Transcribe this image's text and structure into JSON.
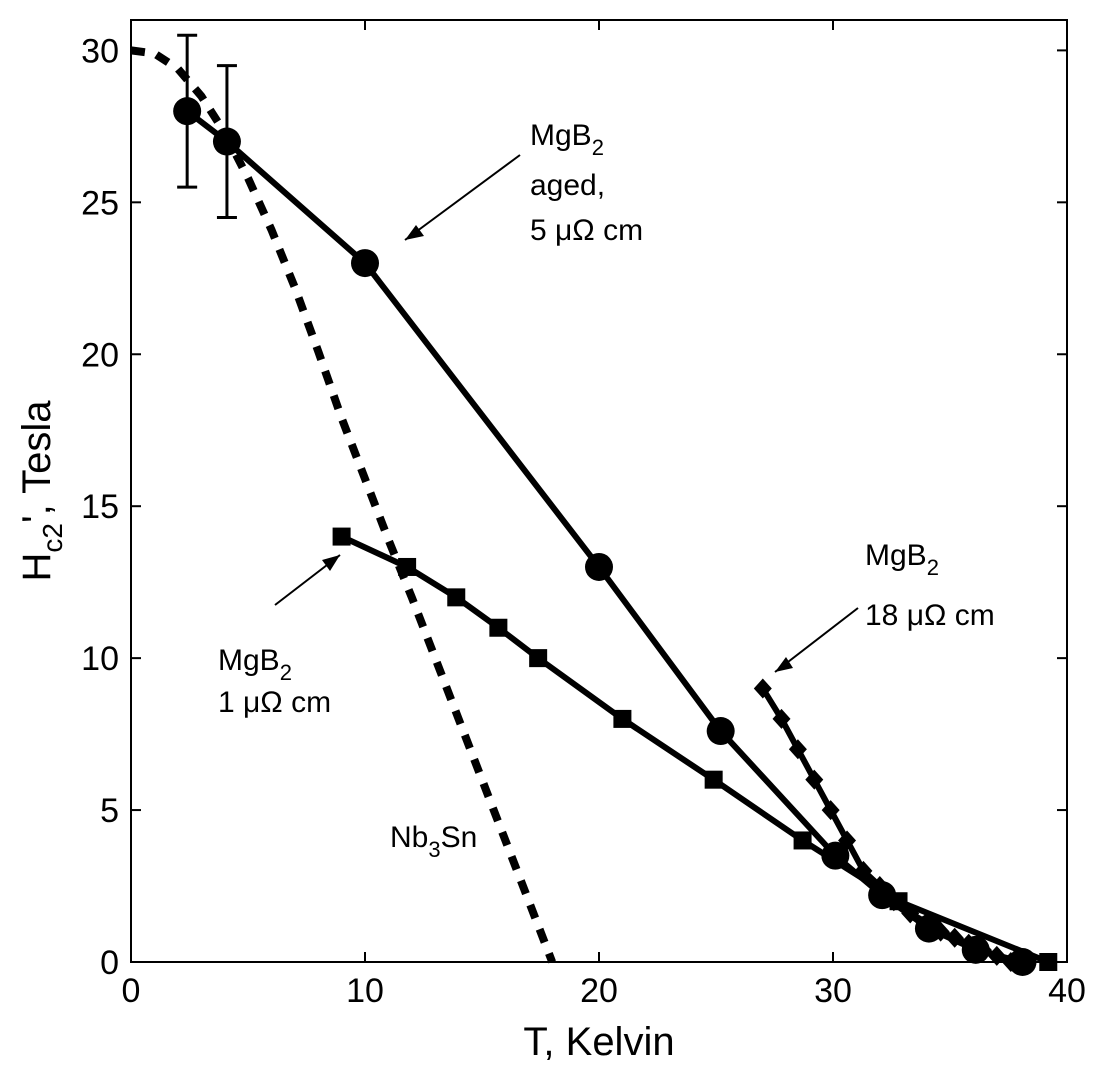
{
  "chart_data": {
    "type": "line",
    "xlabel": "T, Kelvin",
    "ylabel_main": "H",
    "ylabel_sub": "c2",
    "ylabel_rest": "', Tesla",
    "xlim": [
      0,
      40
    ],
    "ylim": [
      0,
      31
    ],
    "xticks": [
      0,
      10,
      20,
      30,
      40
    ],
    "yticks": [
      0,
      5,
      10,
      15,
      20,
      25,
      30
    ],
    "grid": false,
    "series": [
      {
        "id": "aged",
        "marker": "circle",
        "line": "solid",
        "x": [
          2.4,
          4.1,
          10,
          20,
          25.2,
          30.1,
          32.1,
          34.1,
          36.1,
          38.1
        ],
        "y": [
          28,
          27,
          23,
          13,
          7.6,
          3.5,
          2.2,
          1.1,
          0.4,
          0
        ]
      },
      {
        "id": "1uohm",
        "marker": "square",
        "line": "solid",
        "x": [
          9,
          11.8,
          13.9,
          15.7,
          17.4,
          21,
          24.9,
          28.7,
          32.8,
          39.2
        ],
        "y": [
          14,
          13,
          12,
          11,
          10,
          8,
          6,
          4,
          2,
          0
        ]
      },
      {
        "id": "18uohm",
        "marker": "diamond",
        "line": "solid",
        "x": [
          27,
          27.8,
          28.5,
          29.2,
          29.9,
          30.6,
          31.3,
          32,
          32.6,
          33.3,
          34,
          34.6,
          35.2,
          35.8,
          36.4,
          37,
          37.6
        ],
        "y": [
          9,
          8,
          7,
          6,
          5,
          4,
          3,
          2.5,
          2,
          1.6,
          1.3,
          1,
          0.8,
          0.6,
          0.4,
          0.2,
          0
        ]
      },
      {
        "id": "nb3sn",
        "marker": "none",
        "line": "dotted",
        "x": [
          0,
          1,
          2,
          3,
          4,
          5,
          6,
          7,
          8,
          9,
          10,
          11,
          12,
          13,
          14,
          15,
          16,
          17,
          18
        ],
        "y": [
          30,
          29.9,
          29.4,
          28.5,
          27.3,
          25.8,
          24.1,
          22.2,
          20.1,
          17.9,
          15.9,
          13.9,
          12.0,
          10.0,
          8.0,
          6.0,
          4.0,
          2.0,
          0
        ]
      }
    ],
    "error_bars": [
      {
        "x": 2.4,
        "y": 28,
        "low": 25.5,
        "high": 30.5
      },
      {
        "x": 4.1,
        "y": 27,
        "low": 24.5,
        "high": 29.5
      }
    ],
    "annotations": {
      "aged_line1": "MgB",
      "aged_sub": "2",
      "aged_line2": "aged,",
      "aged_line3": "5 μΩ cm",
      "one_line1": "MgB",
      "one_sub": "2",
      "one_line2": "1 μΩ cm",
      "eighteen_line1": "MgB",
      "eighteen_sub": "2",
      "eighteen_line2": "18 μΩ cm",
      "nb_main": "Nb",
      "nb_sub": "3",
      "nb_rest": "Sn"
    }
  }
}
